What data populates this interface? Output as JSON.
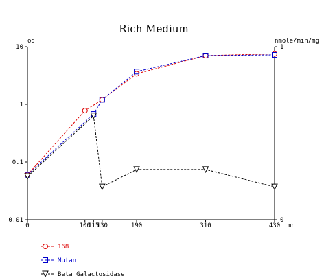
{
  "chart_data": {
    "type": "line",
    "title": "Rich Medium",
    "x": [
      0,
      100,
      115,
      130,
      190,
      310,
      430
    ],
    "x_ticks": [
      "0",
      "100",
      "115",
      "130",
      "190",
      "310",
      "430"
    ],
    "x_unit": "mn",
    "xlim": [
      0,
      430
    ],
    "y_left_label": "od",
    "y_left_scale": "log",
    "y_left_ticks": [
      "0.01",
      "0.1",
      "1",
      "10"
    ],
    "y_left_lim": [
      0.01,
      10
    ],
    "y_right_label": "nmole/min/mg",
    "y_right_ticks": [
      "0",
      "1"
    ],
    "y_right_lim": [
      0,
      1
    ],
    "grid": false,
    "legend_position": "bottom-left",
    "series": [
      {
        "name": "168",
        "axis": "left",
        "color": "#dd0000",
        "marker": "circle",
        "points": [
          [
            0,
            0.06
          ],
          [
            100,
            0.78
          ],
          [
            130,
            1.2
          ],
          [
            190,
            3.4
          ],
          [
            310,
            7.0
          ],
          [
            430,
            7.5
          ]
        ]
      },
      {
        "name": "Mutant",
        "axis": "left",
        "color": "#0000cc",
        "marker": "square",
        "points": [
          [
            0,
            0.06
          ],
          [
            115,
            0.68
          ],
          [
            130,
            1.2
          ],
          [
            190,
            3.7
          ],
          [
            310,
            7.0
          ],
          [
            430,
            7.2
          ]
        ]
      },
      {
        "name": "Beta Galactosidase",
        "axis": "right",
        "color": "#000000",
        "marker": "triangle-down",
        "points": [
          [
            0,
            0.25
          ],
          [
            115,
            0.6
          ],
          [
            130,
            0.19
          ],
          [
            190,
            0.29
          ],
          [
            310,
            0.29
          ],
          [
            430,
            0.19
          ]
        ]
      }
    ]
  }
}
